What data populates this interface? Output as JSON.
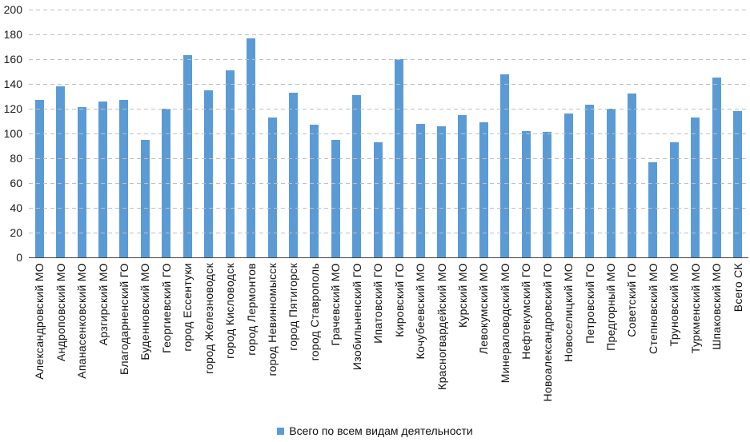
{
  "chart_data": {
    "type": "bar",
    "title": "",
    "categories": [
      "Александровский МО",
      "Андроповский МО",
      "Апанасенковский МО",
      "Арзгирский МО",
      "Благодарненский ГО",
      "Буденновский МО",
      "Георгиевский ГО",
      "город Ессентуки",
      "город Железноводск",
      "город Кисловодск",
      "город Лермонтов",
      "город Невинномысск",
      "город Пятигорск",
      "город Ставрополь",
      "Грачевский МО",
      "Изобильненский ГО",
      "Ипатовский ГО",
      "Кировский ГО",
      "Кочубеевский МО",
      "Красногвардейский МО",
      "Курский МО",
      "Левокумский МО",
      "Минераловодский МО",
      "Нефтекумский ГО",
      "Новоалександровский ГО",
      "Новоселицкий МО",
      "Петровский ГО",
      "Предгорный МО",
      "Советский ГО",
      "Степновский МО",
      "Труновский МО",
      "Туркменский МО",
      "Шпаковский МО",
      "Всего СК"
    ],
    "series": [
      {
        "name": "Всего по всем видам деятельности",
        "values": [
          127,
          138,
          121,
          126,
          127,
          95,
          120,
          163,
          135,
          151,
          177,
          113,
          133,
          107,
          95,
          131,
          93,
          160,
          108,
          106,
          115,
          109,
          148,
          102,
          101,
          116,
          123,
          120,
          132,
          77,
          93,
          113,
          145,
          118
        ]
      }
    ],
    "xlabel": "",
    "ylabel": "",
    "ylim": [
      0,
      200
    ],
    "yticks": [
      0,
      20,
      40,
      60,
      80,
      100,
      120,
      140,
      160,
      180,
      200
    ],
    "grid": "horizontal-dashed",
    "legend_position": "bottom",
    "bar_color": "#5B9BD5",
    "gridline_color": "#bfbfbf",
    "axis_color": "#404040"
  },
  "legend": {
    "label": "Всего по всем видам деятельности",
    "marker_color": "#5B9BD5"
  }
}
